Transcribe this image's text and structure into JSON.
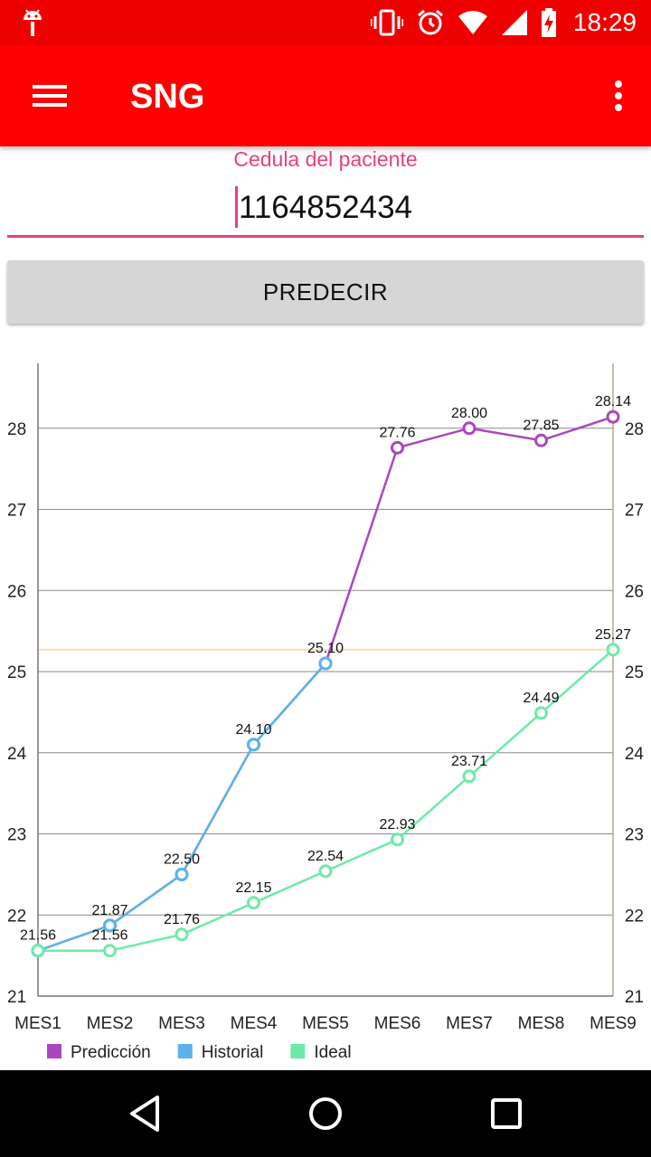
{
  "status_bar": {
    "time": "18:29",
    "icons": [
      "android-icon",
      "vibrate-icon",
      "alarm-icon",
      "wifi-icon",
      "signal-icon",
      "battery-charging-icon"
    ]
  },
  "app_bar": {
    "title": "SNG",
    "menu_icon": "hamburger-menu-icon",
    "overflow_icon": "overflow-menu-icon"
  },
  "form": {
    "label": "Cedula del paciente",
    "value": "1164852434",
    "button_label": "PREDECIR"
  },
  "colors": {
    "status_bar": "#ee0000",
    "app_bar": "#ff0000",
    "accent": "#e8407a",
    "prediccion": "#ab47bc",
    "historial": "#5ab4ea",
    "ideal": "#6eeaa8",
    "limit_line": "#f6dcb8"
  },
  "chart_data": {
    "type": "line",
    "categories": [
      "MES1",
      "MES2",
      "MES3",
      "MES4",
      "MES5",
      "MES6",
      "MES7",
      "MES8",
      "MES9"
    ],
    "ylim": [
      21,
      28.8
    ],
    "y_ticks": [
      21,
      22,
      23,
      24,
      25,
      26,
      27,
      28
    ],
    "grid": true,
    "legend_position": "bottom-left",
    "limit_line_value": 25.27,
    "series": [
      {
        "name": "Predicción",
        "color": "#ab47bc",
        "values": [
          21.56,
          21.87,
          22.5,
          24.1,
          25.1,
          27.76,
          28.0,
          27.85,
          28.14
        ]
      },
      {
        "name": "Historial",
        "color": "#5ab4ea",
        "values": [
          21.56,
          21.87,
          22.5,
          24.1,
          25.1,
          null,
          null,
          null,
          null
        ]
      },
      {
        "name": "Ideal",
        "color": "#6eeaa8",
        "values": [
          21.56,
          21.56,
          21.76,
          22.15,
          22.54,
          22.93,
          23.71,
          24.49,
          25.27
        ]
      }
    ],
    "data_labels": [
      {
        "category": "MES1",
        "value": 21.56,
        "text": "21.56"
      },
      {
        "category": "MES2",
        "value": 21.87,
        "text": "21.87"
      },
      {
        "category": "MES3",
        "value": 22.5,
        "text": "22.50"
      },
      {
        "category": "MES4",
        "value": 24.1,
        "text": "24.10"
      },
      {
        "category": "MES5",
        "value": 25.1,
        "text": "25.10"
      },
      {
        "category": "MES6",
        "value": 27.76,
        "text": "27.76"
      },
      {
        "category": "MES7",
        "value": 28.0,
        "text": "28.00"
      },
      {
        "category": "MES8",
        "value": 27.85,
        "text": "27.85"
      },
      {
        "category": "MES9",
        "value": 28.14,
        "text": "28.14"
      },
      {
        "category": "MES2",
        "value": 21.56,
        "text": "21.56"
      },
      {
        "category": "MES3",
        "value": 21.76,
        "text": "21.76"
      },
      {
        "category": "MES4",
        "value": 22.15,
        "text": "22.15"
      },
      {
        "category": "MES5",
        "value": 22.54,
        "text": "22.54"
      },
      {
        "category": "MES6",
        "value": 22.93,
        "text": "22.93"
      },
      {
        "category": "MES7",
        "value": 23.71,
        "text": "23.71"
      },
      {
        "category": "MES8",
        "value": 24.49,
        "text": "24.49"
      },
      {
        "category": "MES9",
        "value": 25.27,
        "text": "25.27"
      }
    ]
  },
  "nav_bar": {
    "icons": [
      "back-icon",
      "home-icon",
      "recents-icon"
    ]
  }
}
